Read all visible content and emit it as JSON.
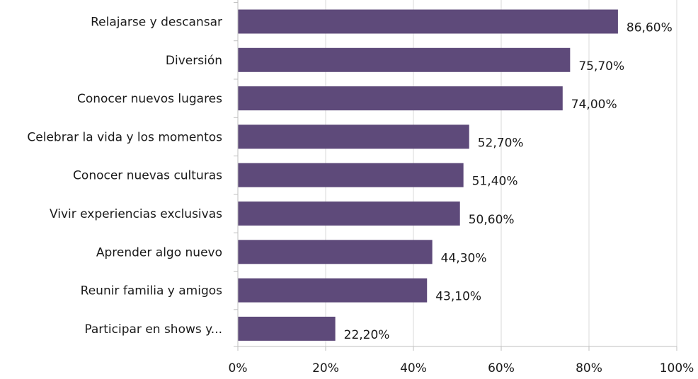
{
  "chart_data": {
    "type": "bar",
    "orientation": "horizontal",
    "categories": [
      "Relajarse y descansar",
      "Diversión",
      "Conocer nuevos lugares",
      "Celebrar la vida y los momentos",
      "Conocer nuevas culturas",
      "Vivir experiencias exclusivas",
      "Aprender algo nuevo",
      "Reunir familia y amigos",
      "Participar en shows y..."
    ],
    "values": [
      86.6,
      75.7,
      74.0,
      52.7,
      51.4,
      50.6,
      44.3,
      43.1,
      22.2
    ],
    "value_labels": [
      "86,60%",
      "75,70%",
      "74,00%",
      "52,70%",
      "51,40%",
      "50,60%",
      "44,30%",
      "43,10%",
      "22,20%"
    ],
    "x_ticks": [
      "0%",
      "20%",
      "40%",
      "60%",
      "80%",
      "100%"
    ],
    "xlim": [
      0,
      100
    ],
    "grid": "vertical",
    "bar_color": "#5e4a7a",
    "grid_color": "#d9d9d9",
    "axis_color": "#bfbfbf"
  }
}
